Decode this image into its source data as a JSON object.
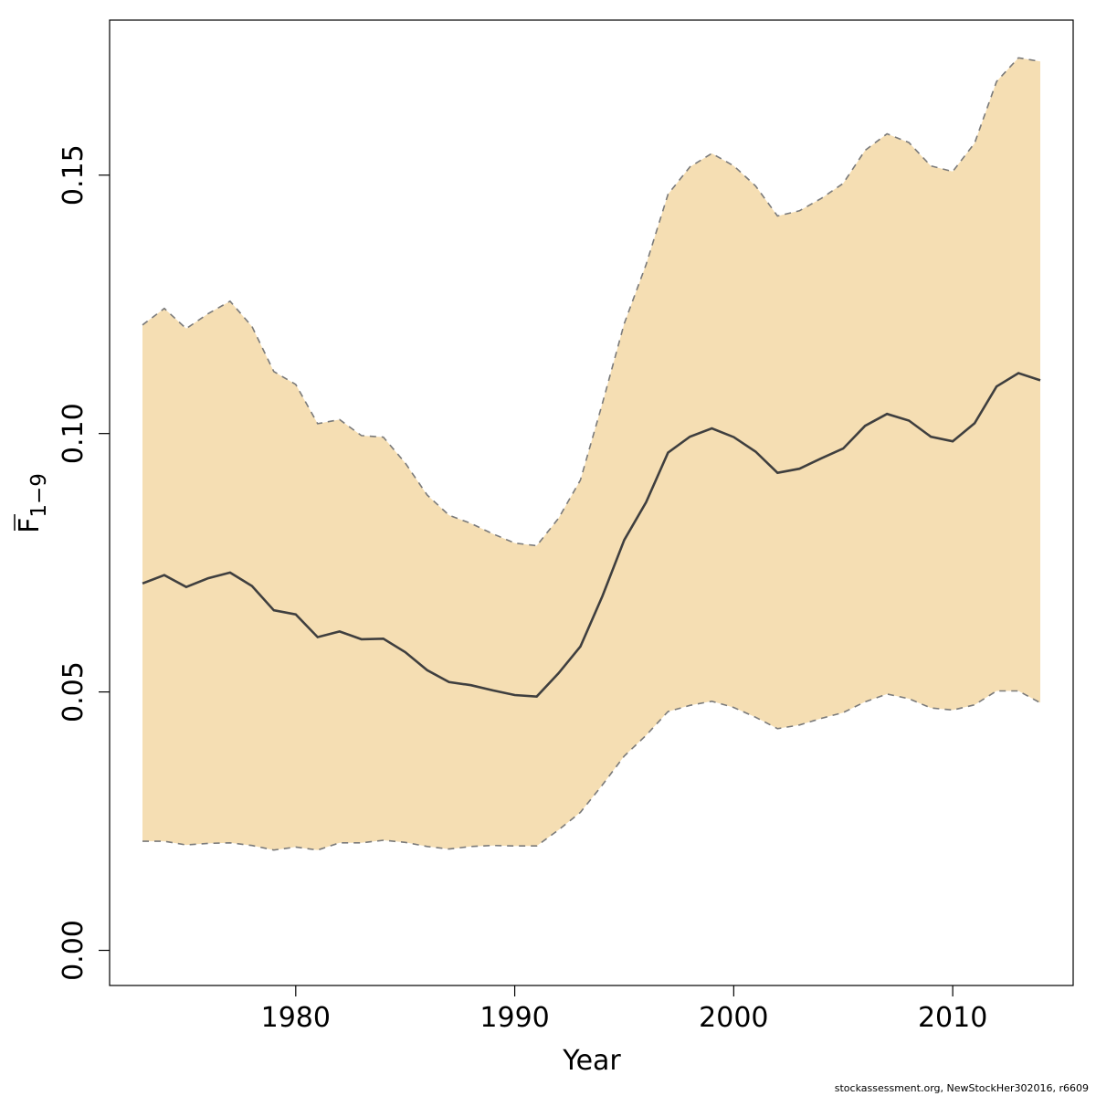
{
  "chart_data": {
    "type": "area",
    "xlabel": "Year",
    "ylabel_main": "F",
    "ylabel_sub": "1−9",
    "xlim": [
      1971.5,
      2015.5
    ],
    "ylim": [
      -0.0068,
      0.18
    ],
    "xticks": [
      1980,
      1990,
      2000,
      2010
    ],
    "yticks": [
      0.0,
      0.05,
      0.1,
      0.15
    ],
    "ytick_labels": [
      "0.00",
      "0.05",
      "0.10",
      "0.15"
    ],
    "x": [
      1973,
      1974,
      1975,
      1976,
      1977,
      1978,
      1979,
      1980,
      1981,
      1982,
      1983,
      1984,
      1985,
      1986,
      1987,
      1988,
      1989,
      1990,
      1991,
      1992,
      1993,
      1994,
      1995,
      1996,
      1997,
      1998,
      1999,
      2000,
      2001,
      2002,
      2003,
      2004,
      2005,
      2006,
      2007,
      2008,
      2009,
      2010,
      2011,
      2012,
      2013,
      2014
    ],
    "series": [
      {
        "role": "estimate",
        "values": [
          0.071,
          0.0726,
          0.0703,
          0.072,
          0.0731,
          0.0705,
          0.0658,
          0.065,
          0.0606,
          0.0617,
          0.0602,
          0.0603,
          0.0577,
          0.0542,
          0.0519,
          0.0513,
          0.0503,
          0.0494,
          0.0491,
          0.0536,
          0.0588,
          0.0685,
          0.0794,
          0.0867,
          0.0963,
          0.0994,
          0.101,
          0.0993,
          0.0965,
          0.0924,
          0.0932,
          0.0952,
          0.0971,
          0.1015,
          0.1038,
          0.1025,
          0.0994,
          0.0985,
          0.102,
          0.1091,
          0.1117,
          0.1103
        ]
      },
      {
        "role": "upper",
        "values": [
          0.121,
          0.1242,
          0.1203,
          0.1232,
          0.1256,
          0.1207,
          0.112,
          0.1095,
          0.1019,
          0.1027,
          0.0996,
          0.0993,
          0.0943,
          0.0881,
          0.0842,
          0.0826,
          0.0806,
          0.0788,
          0.0783,
          0.0836,
          0.091,
          0.1058,
          0.1213,
          0.1327,
          0.1463,
          0.1516,
          0.1542,
          0.1518,
          0.1479,
          0.1421,
          0.1431,
          0.1455,
          0.1484,
          0.1548,
          0.158,
          0.1563,
          0.1518,
          0.1507,
          0.1562,
          0.1681,
          0.1727,
          0.172
        ]
      },
      {
        "role": "lower",
        "values": [
          0.0211,
          0.0211,
          0.0204,
          0.0207,
          0.0208,
          0.0203,
          0.0194,
          0.02,
          0.0194,
          0.0208,
          0.0208,
          0.0213,
          0.0209,
          0.0201,
          0.0196,
          0.0201,
          0.0203,
          0.0202,
          0.0202,
          0.0233,
          0.0267,
          0.032,
          0.0376,
          0.0416,
          0.0462,
          0.0474,
          0.0482,
          0.047,
          0.0451,
          0.0429,
          0.0436,
          0.0449,
          0.046,
          0.0481,
          0.0496,
          0.0487,
          0.0469,
          0.0465,
          0.0475,
          0.0502,
          0.0502,
          0.0479
        ]
      }
    ],
    "colors": {
      "band": "#F5DEB3",
      "line": "#3f3f3f",
      "bound": "#7a7a7a"
    }
  },
  "footer": "stockassessment.org, NewStockHer302016, r6609"
}
